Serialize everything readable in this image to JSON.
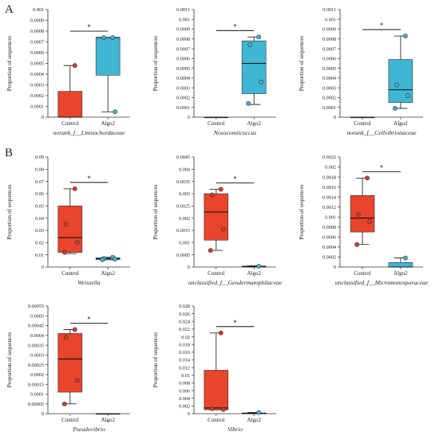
{
  "panels": [
    {
      "letter": "A"
    },
    {
      "letter": "B"
    }
  ],
  "colors": {
    "control_fill": "#e8452c",
    "algo2_fill": "#3fb6d4",
    "control_point": "#d63a2c",
    "algo2_point": "#45b2cf",
    "axis": "#333333",
    "median": "#111111"
  },
  "chart_data": [
    {
      "type": "box",
      "panel": "A",
      "xlabel": "norank_f__Limnochordaceae",
      "ylabel": "Proportion of sequences",
      "ylim": [
        0,
        0.001
      ],
      "yticks": [
        "0",
        "0.0001",
        "0.0002",
        "0.0003",
        "0.0004",
        "0.0005",
        "0.0006",
        "0.0007",
        "0.0008",
        "0.0009",
        "0.001"
      ],
      "categories": [
        "Control",
        "Algo2"
      ],
      "significance": "*",
      "boxes": [
        {
          "group": "Control",
          "min": 0,
          "q1": 0,
          "median": 0,
          "q3": 0.00024,
          "max": 0.00048,
          "points": [
            0.00048
          ]
        },
        {
          "group": "Algo2",
          "min": 5e-05,
          "q1": 0.00039,
          "median": 0.00074,
          "q3": 0.00074,
          "max": 0.00074,
          "points": [
            0.00074,
            0.00074,
            5e-05
          ]
        }
      ]
    },
    {
      "type": "box",
      "panel": "A",
      "xlabel": "Nosocomiicoccus",
      "ylabel": "Proportion of sequences",
      "ylim": [
        0,
        0.0011
      ],
      "yticks": [
        "0",
        "0.0001",
        "0.0002",
        "0.0003",
        "0.0004",
        "0.0005",
        "0.0006",
        "0.0007",
        "0.0008",
        "0.0009",
        "0.001",
        "0.0011"
      ],
      "categories": [
        "Control",
        "Algo2"
      ],
      "significance": "*",
      "boxes": [
        {
          "group": "Control",
          "min": 0,
          "q1": 0,
          "median": 0,
          "q3": 0,
          "max": 0,
          "points": []
        },
        {
          "group": "Algo2",
          "min": 0.00013,
          "q1": 0.00024,
          "median": 0.00055,
          "q3": 0.00078,
          "max": 0.00082,
          "points": [
            0.00082,
            0.00074,
            0.00036,
            0.00014
          ]
        }
      ]
    },
    {
      "type": "box",
      "panel": "A",
      "xlabel": "norank_f__Cellvibrionaceae",
      "ylabel": "Proportion of sequences",
      "ylim": [
        0,
        0.0011
      ],
      "yticks": [
        "0",
        "0.0001",
        "0.0002",
        "0.0003",
        "0.0004",
        "0.0005",
        "0.0006",
        "0.0007",
        "0.0008",
        "0.0009",
        "0.001",
        "0.0011"
      ],
      "categories": [
        "Control",
        "Algo2"
      ],
      "significance": "*",
      "boxes": [
        {
          "group": "Control",
          "min": 0,
          "q1": 0,
          "median": 0,
          "q3": 0,
          "max": 0,
          "points": []
        },
        {
          "group": "Algo2",
          "min": 9e-05,
          "q1": 0.00015,
          "median": 0.00028,
          "q3": 0.00059,
          "max": 0.00083,
          "points": [
            0.00083,
            0.00033,
            0.00022,
            9e-05
          ]
        }
      ]
    },
    {
      "type": "box",
      "panel": "B",
      "xlabel": "Weissella",
      "ylabel": "Proportion of sequences",
      "ylim": [
        0,
        0.09
      ],
      "yticks": [
        "0",
        "0.01",
        "0.02",
        "0.03",
        "0.04",
        "0.05",
        "0.06",
        "0.07",
        "0.08",
        "0.09"
      ],
      "categories": [
        "Control",
        "Algo2"
      ],
      "significance": "*",
      "boxes": [
        {
          "group": "Control",
          "min": 0.011,
          "q1": 0.012,
          "median": 0.024,
          "q3": 0.05,
          "max": 0.064,
          "points": [
            0.064,
            0.035,
            0.02,
            0.012
          ]
        },
        {
          "group": "Algo2",
          "min": 0.006,
          "q1": 0.006,
          "median": 0.007,
          "q3": 0.0075,
          "max": 0.008,
          "points": [
            0.008,
            0.007,
            0.0065,
            0.006
          ]
        }
      ]
    },
    {
      "type": "box",
      "panel": "B",
      "xlabel": "unclassified_f__Geodermatophilaceae",
      "ylabel": "Proportion of sequences",
      "ylim": [
        0,
        0.0045
      ],
      "yticks": [
        "0",
        "0.0005",
        "0.001",
        "0.0015",
        "0.002",
        "0.0025",
        "0.003",
        "0.0035",
        "0.004",
        "0.0045"
      ],
      "categories": [
        "Control",
        "Algo2"
      ],
      "significance": "*",
      "boxes": [
        {
          "group": "Control",
          "min": 0.00068,
          "q1": 0.0011,
          "median": 0.00225,
          "q3": 0.003,
          "max": 0.00318,
          "points": [
            0.00318,
            0.00295,
            0.00155,
            0.00068
          ]
        },
        {
          "group": "Algo2",
          "min": 0,
          "q1": 0,
          "median": 2e-05,
          "q3": 4e-05,
          "max": 5e-05,
          "points": [
            3e-05
          ]
        }
      ]
    },
    {
      "type": "box",
      "panel": "B",
      "xlabel": "unclassified_f__Micromonosporaceae",
      "ylabel": "Proportion of sequences",
      "ylim": [
        0,
        0.0022
      ],
      "yticks": [
        "0",
        "0.0002",
        "0.0004",
        "0.0006",
        "0.0008",
        "0.001",
        "0.0012",
        "0.0014",
        "0.0016",
        "0.0018",
        "0.002",
        "0.0022"
      ],
      "categories": [
        "Control",
        "Algo2"
      ],
      "significance": "*",
      "boxes": [
        {
          "group": "Control",
          "min": 0.00045,
          "q1": 0.0007,
          "median": 0.00098,
          "q3": 0.00143,
          "max": 0.00178,
          "points": [
            0.00178,
            0.00105,
            0.00091,
            0.00045
          ]
        },
        {
          "group": "Algo2",
          "min": 0,
          "q1": 0,
          "median": 0,
          "q3": 9e-05,
          "max": 0.00018,
          "points": [
            0.00018
          ]
        }
      ]
    },
    {
      "type": "box",
      "panel": "B",
      "xlabel": "Pseudovibrio",
      "ylabel": "Proportion of sequences",
      "ylim": [
        0,
        0.00055
      ],
      "yticks": [
        "0",
        "0.00005",
        "0.0001",
        "0.00015",
        "0.0002",
        "0.00025",
        "0.0003",
        "0.00035",
        "0.0004",
        "0.00045",
        "0.0005",
        "0.00055"
      ],
      "categories": [
        "Control",
        "Algo2"
      ],
      "significance": "*",
      "boxes": [
        {
          "group": "Control",
          "min": 5e-05,
          "q1": 0.00011,
          "median": 0.00028,
          "q3": 0.00041,
          "max": 0.00043,
          "points": [
            0.00043,
            0.00039,
            0.00017,
            5e-05
          ]
        },
        {
          "group": "Algo2",
          "min": 0,
          "q1": 0,
          "median": 0,
          "q3": 0,
          "max": 0,
          "points": []
        }
      ]
    },
    {
      "type": "box",
      "panel": "B",
      "xlabel": "Vibrio",
      "ylabel": "Proportion of sequences",
      "ylim": [
        0,
        0.028
      ],
      "yticks": [
        "0",
        "0.002",
        "0.004",
        "0.006",
        "0.008",
        "0.01",
        "0.012",
        "0.014",
        "0.016",
        "0.018",
        "0.02",
        "0.022",
        "0.024",
        "0.026",
        "0.028"
      ],
      "categories": [
        "Control",
        "Algo2"
      ],
      "significance": "*",
      "boxes": [
        {
          "group": "Control",
          "min": 0.001,
          "q1": 0.001,
          "median": 0.0015,
          "q3": 0.0113,
          "max": 0.021,
          "points": [
            0.021,
            0.0013,
            0.0011
          ]
        },
        {
          "group": "Algo2",
          "min": 0,
          "q1": 0,
          "median": 0.0001,
          "q3": 0.0002,
          "max": 0.0003,
          "points": [
            0.0003
          ]
        }
      ]
    }
  ]
}
